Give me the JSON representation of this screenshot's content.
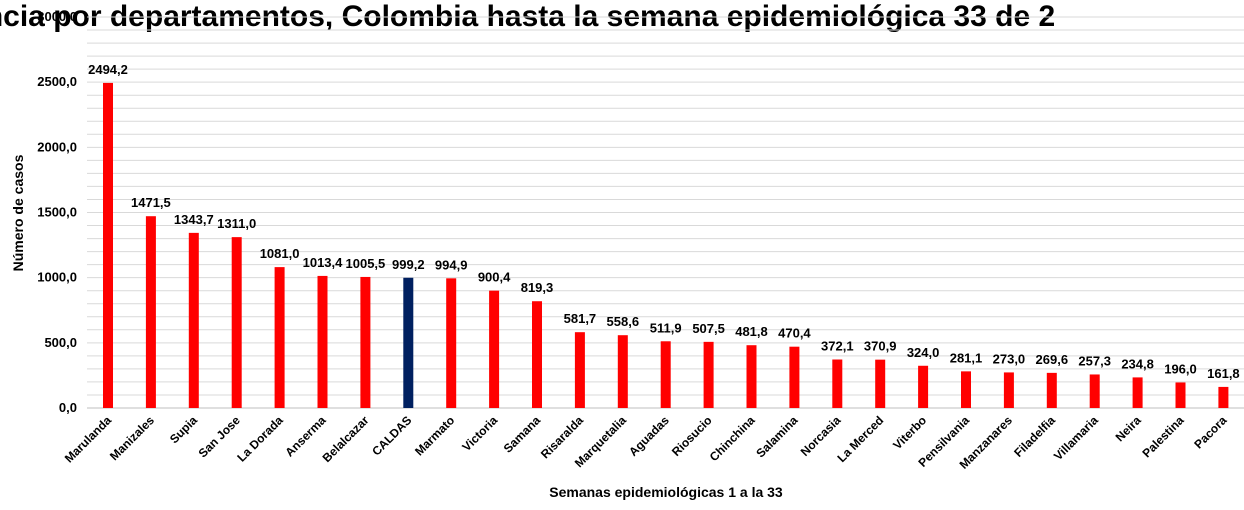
{
  "chart_data": {
    "type": "bar",
    "title": "ncia por departamentos, Colombia hasta la semana epidemiológica 33 de 2",
    "xlabel": "Semanas epidemiológicas 1 a la 33",
    "ylabel": "Número de casos",
    "ylim": [
      0,
      3000
    ],
    "yticks": [
      0,
      500,
      1000,
      1500,
      2000,
      2500,
      3000
    ],
    "ytick_labels": [
      "0,0",
      "500,0",
      "1000,0",
      "1500,0",
      "2000,0",
      "2500,0",
      "3000,0"
    ],
    "grid": true,
    "categories": [
      "Marulanda",
      "Manizales",
      "Supia",
      "San Jose",
      "La Dorada",
      "Anserma",
      "Belalcazar",
      "CALDAS",
      "Marmato",
      "Victoria",
      "Samana",
      "Risaralda",
      "Marquetalia",
      "Aguadas",
      "Riosucio",
      "Chinchina",
      "Salamina",
      "Norcasia",
      "La Merced",
      "Viterbo",
      "Pensilvania",
      "Manzanares",
      "Filadelfia",
      "Villamaria",
      "Neira",
      "Palestina",
      "Pacora"
    ],
    "values": [
      2494.2,
      1471.5,
      1343.7,
      1311.0,
      1081.0,
      1013.4,
      1005.5,
      999.2,
      994.9,
      900.4,
      819.3,
      581.7,
      558.6,
      511.9,
      507.5,
      481.8,
      470.4,
      372.1,
      370.9,
      324.0,
      281.1,
      273.0,
      269.6,
      257.3,
      234.8,
      196.0,
      161.8
    ],
    "value_labels": [
      "2494,2",
      "1471,5",
      "1343,7",
      "1311,0",
      "1081,0",
      "1013,4",
      "1005,5",
      "999,2",
      "994,9",
      "900,4",
      "819,3",
      "581,7",
      "558,6",
      "511,9",
      "507,5",
      "481,8",
      "470,4",
      "372,1",
      "370,9",
      "324,0",
      "281,1",
      "273,0",
      "269,6",
      "257,3",
      "234,8",
      "196,0",
      "161,8"
    ],
    "colors": {
      "default": "#ff0000",
      "highlight": "#002060"
    },
    "highlight_category": "CALDAS"
  }
}
